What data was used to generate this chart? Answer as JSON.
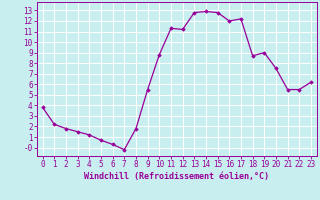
{
  "x": [
    0,
    1,
    2,
    3,
    4,
    5,
    6,
    7,
    8,
    9,
    10,
    11,
    12,
    13,
    14,
    15,
    16,
    17,
    18,
    19,
    20,
    21,
    22,
    23
  ],
  "y": [
    3.8,
    2.2,
    1.8,
    1.5,
    1.2,
    0.7,
    0.3,
    -0.2,
    1.8,
    5.5,
    8.8,
    11.3,
    11.2,
    12.8,
    12.9,
    12.8,
    12.0,
    12.2,
    8.7,
    9.0,
    7.5,
    5.5,
    5.5,
    6.2
  ],
  "line_color": "#990099",
  "marker": "D",
  "marker_size": 1.8,
  "line_width": 0.9,
  "bg_color": "#c8eef0",
  "grid_color": "#ffffff",
  "xlabel": "Windchill (Refroidissement éolien,°C)",
  "xlabel_color": "#990099",
  "tick_color": "#990099",
  "ylim": [
    -0.8,
    13.8
  ],
  "xlim": [
    -0.5,
    23.5
  ],
  "yticks": [
    0,
    1,
    2,
    3,
    4,
    5,
    6,
    7,
    8,
    9,
    10,
    11,
    12,
    13
  ],
  "ytick_labels": [
    "-0",
    "1",
    "2",
    "3",
    "4",
    "5",
    "6",
    "7",
    "8",
    "9",
    "10",
    "11",
    "12",
    "13"
  ],
  "xticks": [
    0,
    1,
    2,
    3,
    4,
    5,
    6,
    7,
    8,
    9,
    10,
    11,
    12,
    13,
    14,
    15,
    16,
    17,
    18,
    19,
    20,
    21,
    22,
    23
  ],
  "font_size": 5.5
}
